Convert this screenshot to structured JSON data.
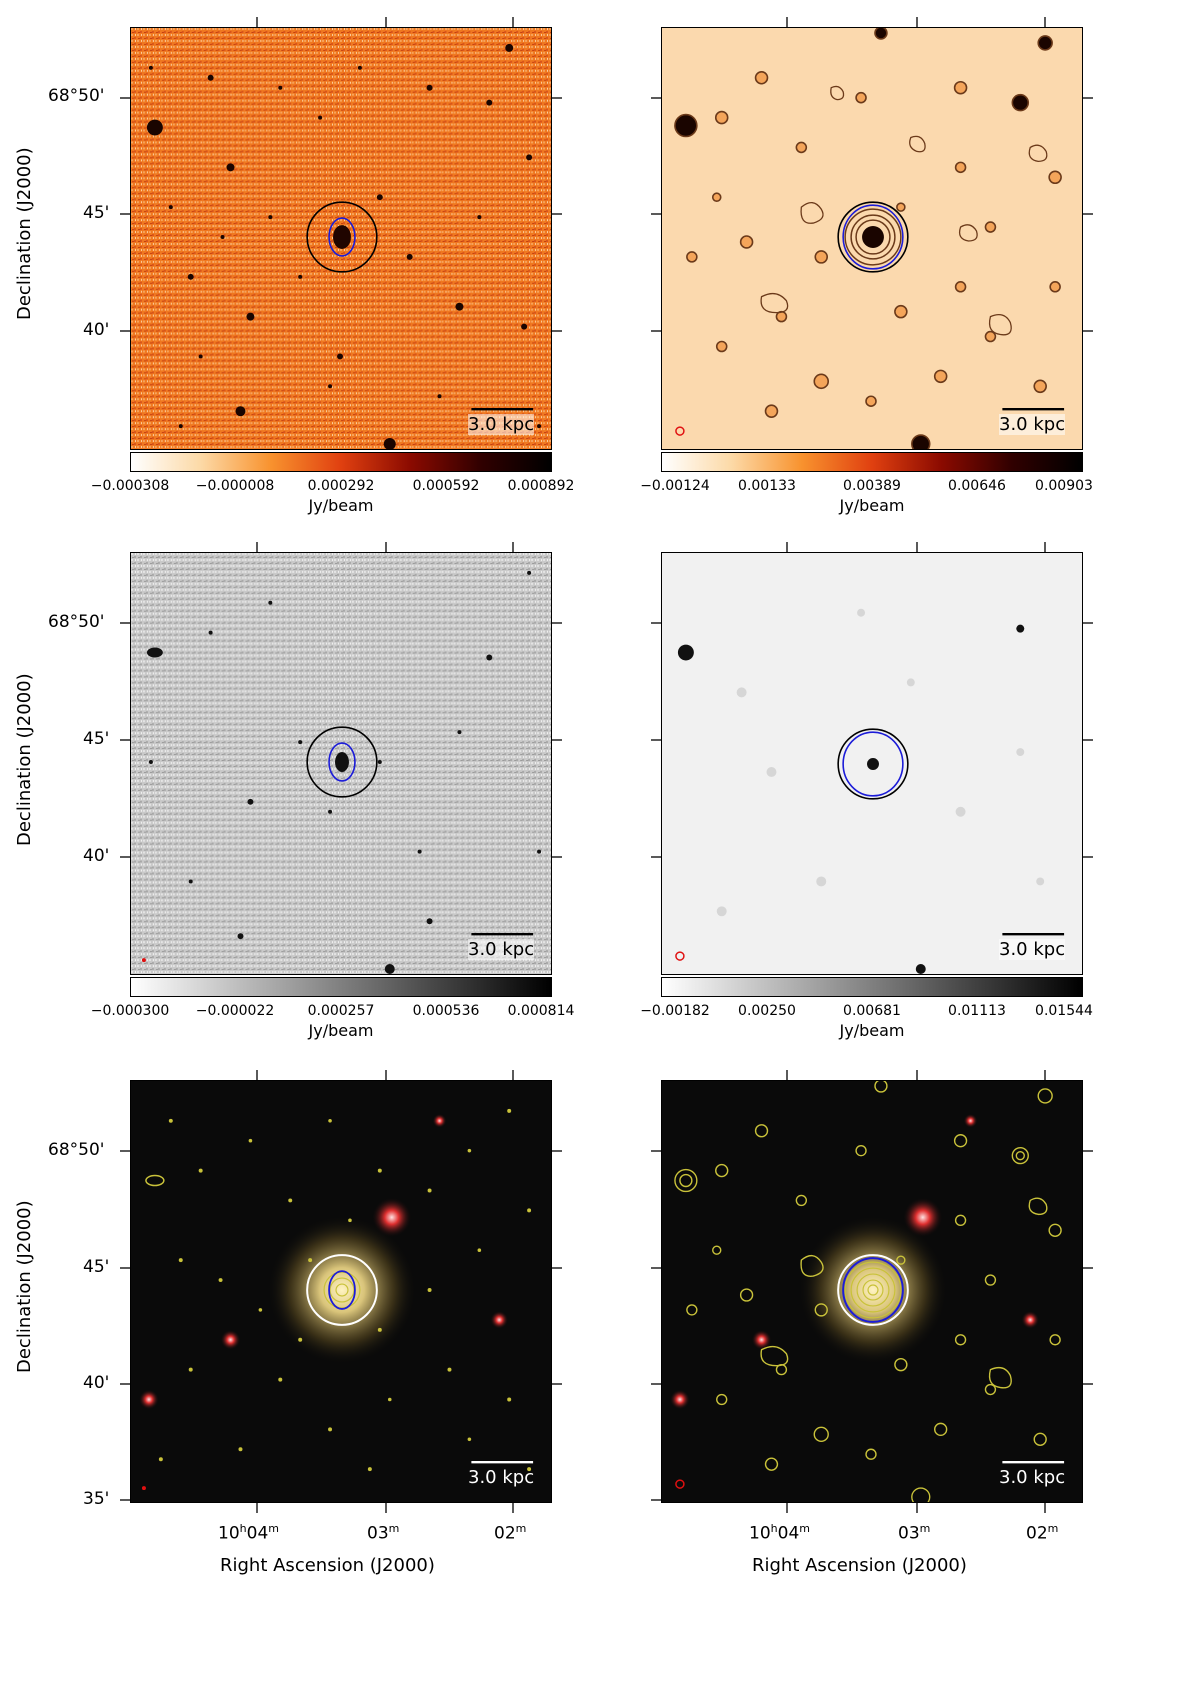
{
  "axes": {
    "dec_ticks": [
      "68°50'",
      "45'",
      "40'",
      "35'"
    ],
    "dec_label": "Declination (J2000)",
    "ra_ticks_html": [
      "10h04m",
      "03m",
      "02m"
    ],
    "ra_label": "Right Ascension (J2000)",
    "units": "Jy/beam"
  },
  "panels": {
    "row1_left": {
      "colormap": "orange-hot",
      "scale_bar": "3.0 kpc",
      "cbar_ticks": [
        "−0.000308",
        "−0.000008",
        "0.000292",
        "0.000592",
        "0.000892"
      ]
    },
    "row1_right": {
      "colormap": "orange-hot",
      "scale_bar": "3.0 kpc",
      "cbar_ticks": [
        "−0.00124",
        "0.00133",
        "0.00389",
        "0.00646",
        "0.00903"
      ]
    },
    "row2_left": {
      "colormap": "grayscale",
      "scale_bar": "3.0 kpc",
      "cbar_ticks": [
        "−0.000300",
        "−0.000022",
        "0.000257",
        "0.000536",
        "0.000814"
      ]
    },
    "row2_right": {
      "colormap": "grayscale",
      "scale_bar": "3.0 kpc",
      "cbar_ticks": [
        "−0.00182",
        "0.00250",
        "0.00681",
        "0.01113",
        "0.01544"
      ]
    },
    "row3_left": {
      "colormap": "optical-rgb",
      "scale_bar": "3.0 kpc"
    },
    "row3_right": {
      "colormap": "optical-rgb",
      "scale_bar": "3.0 kpc"
    }
  },
  "colors": {
    "orange_bg": "#f07820",
    "pale_orange_bg": "#fbd9ae",
    "contour_brown": "#6b3a1a",
    "gray_bg": "#c9c9c9",
    "light_gray_bg": "#f1f1f1",
    "optical_bg": "#0a0a0a",
    "contour_yellow": "#c9c23a",
    "ellipse_blue": "#1c1cd8",
    "ring_black": "#000000",
    "ring_white": "#ffffff",
    "beam_red": "#e01010"
  }
}
